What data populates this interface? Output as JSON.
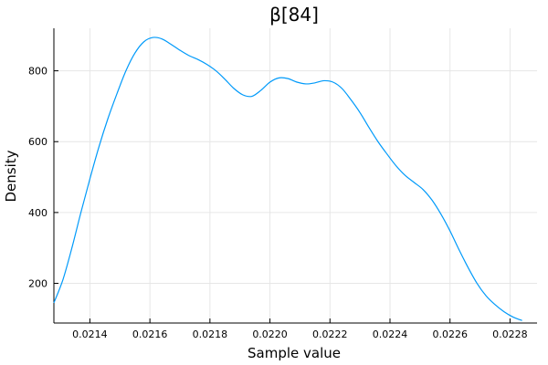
{
  "chart_data": {
    "type": "line",
    "title": "β[84]",
    "xlabel": "Sample value",
    "ylabel": "Density",
    "xlim": [
      0.02128,
      0.02289
    ],
    "ylim": [
      88,
      920
    ],
    "xticks": [
      0.0214,
      0.0216,
      0.0218,
      0.022,
      0.0222,
      0.0224,
      0.0226,
      0.0228
    ],
    "xtick_labels": [
      "0.0214",
      "0.0216",
      "0.0218",
      "0.0220",
      "0.0222",
      "0.0224",
      "0.0226",
      "0.0228"
    ],
    "yticks": [
      200,
      400,
      600,
      800
    ],
    "ytick_labels": [
      "200",
      "400",
      "600",
      "800"
    ],
    "grid": true,
    "legend": "none",
    "series": [
      {
        "color": "#009AFA",
        "x": [
          0.02128,
          0.02131,
          0.02134,
          0.02137,
          0.0214,
          0.02143,
          0.02146,
          0.02149,
          0.02152,
          0.02155,
          0.02158,
          0.02161,
          0.02164,
          0.02167,
          0.0217,
          0.02173,
          0.02176,
          0.02179,
          0.02182,
          0.02185,
          0.02188,
          0.02191,
          0.02194,
          0.02197,
          0.022,
          0.02203,
          0.02206,
          0.02209,
          0.02212,
          0.02215,
          0.02218,
          0.02221,
          0.02224,
          0.02227,
          0.0223,
          0.02233,
          0.02236,
          0.02239,
          0.02242,
          0.02245,
          0.02248,
          0.02251,
          0.02254,
          0.02257,
          0.0226,
          0.02263,
          0.02266,
          0.02269,
          0.02272,
          0.02275,
          0.02278,
          0.02281,
          0.02284
        ],
        "y": [
          145,
          210,
          300,
          400,
          495,
          585,
          665,
          735,
          800,
          850,
          882,
          894,
          890,
          875,
          858,
          843,
          832,
          818,
          800,
          776,
          750,
          732,
          728,
          745,
          768,
          780,
          778,
          768,
          763,
          766,
          772,
          768,
          750,
          718,
          682,
          640,
          600,
          565,
          532,
          505,
          485,
          465,
          435,
          395,
          348,
          295,
          245,
          200,
          165,
          140,
          120,
          105,
          95
        ]
      }
    ]
  }
}
